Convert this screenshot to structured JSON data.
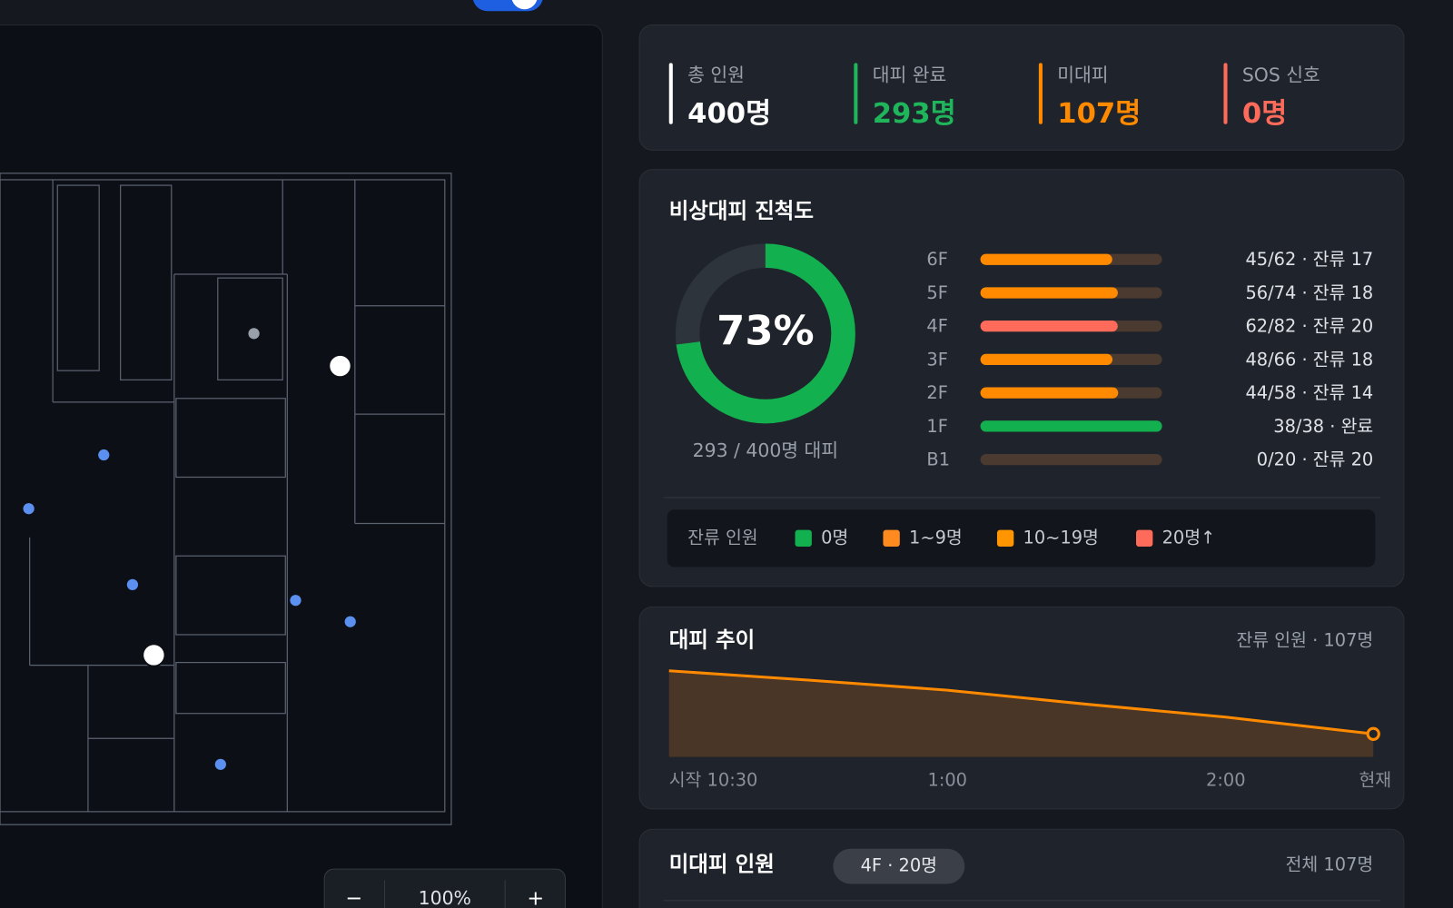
{
  "stats": [
    {
      "label": "총 인원",
      "value": "400명",
      "color": "#ffffff"
    },
    {
      "label": "대피 완료",
      "value": "293명",
      "color": "#1fb55a"
    },
    {
      "label": "미대피",
      "value": "107명",
      "color": "#ff8a00"
    },
    {
      "label": "SOS 신호",
      "value": "0명",
      "color": "#ff6b5a"
    }
  ],
  "progress": {
    "title": "비상대피 진척도",
    "value": 73,
    "value_label": "73%",
    "color": "#12b04e",
    "caption": "293 / 400명 대피",
    "floors": [
      {
        "name": "6F",
        "done": 45,
        "total": 62,
        "label": "45/62 · 잔류 17",
        "color": "#ff8a00"
      },
      {
        "name": "5F",
        "done": 56,
        "total": 74,
        "label": "56/74 · 잔류 18",
        "color": "#ff8a00"
      },
      {
        "name": "4F",
        "done": 62,
        "total": 82,
        "label": "62/82 · 잔류 20",
        "color": "#ff6b5a"
      },
      {
        "name": "3F",
        "done": 48,
        "total": 66,
        "label": "48/66 · 잔류 18",
        "color": "#ff8a00"
      },
      {
        "name": "2F",
        "done": 44,
        "total": 58,
        "label": "44/58 · 잔류 14",
        "color": "#ff8a00"
      },
      {
        "name": "1F",
        "done": 38,
        "total": 38,
        "label": "38/38 · 완료",
        "color": "#12b04e"
      },
      {
        "name": "B1",
        "done": 0,
        "total": 20,
        "label": "0/20 · 잔류 20",
        "color": "#ff6b5a"
      }
    ]
  },
  "legend": {
    "title": "잔류 인원",
    "items": [
      {
        "label": "0명",
        "color": "#12b04e"
      },
      {
        "label": "1~9명",
        "color": "#ff8a1f"
      },
      {
        "label": "10~19명",
        "color": "#ff9500"
      },
      {
        "label": "20명↑",
        "color": "#ff6b5a"
      }
    ]
  },
  "trend": {
    "type": "area",
    "title": "대피 추이",
    "subtitle": "잔류 인원 · 107명",
    "x": [
      0,
      0.5,
      1,
      1.5,
      2,
      2.53
    ],
    "values": [
      400,
      357,
      310,
      245,
      185,
      107
    ],
    "xlim": [
      0,
      2.53
    ],
    "ylim": [
      0,
      400
    ],
    "xticks": [
      {
        "value": 0,
        "label": "시작 10:30"
      },
      {
        "value": 1,
        "label": "1:00"
      },
      {
        "value": 2,
        "label": "2:00"
      },
      {
        "value": 2.53,
        "label": "현재"
      }
    ],
    "color": "#ff8a00"
  },
  "remaining": {
    "title": "미대피 인원",
    "chip": "4F · 20명",
    "total": "전체 107명"
  },
  "zoom": {
    "out": "−",
    "level": "100%",
    "in": "+"
  }
}
